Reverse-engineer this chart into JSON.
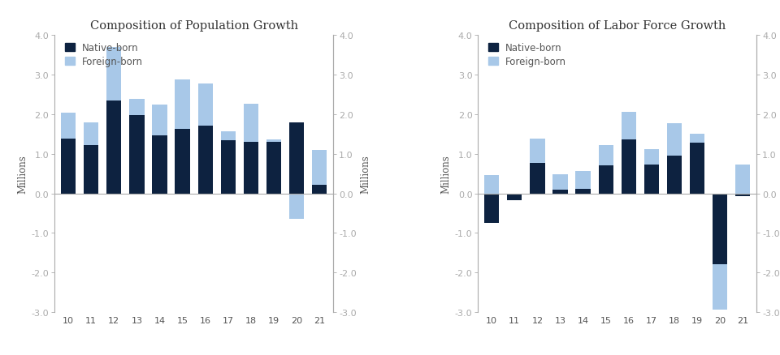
{
  "years": [
    10,
    11,
    12,
    13,
    14,
    15,
    16,
    17,
    18,
    19,
    20,
    21
  ],
  "pop_native": [
    1.38,
    1.22,
    2.35,
    1.97,
    1.47,
    1.62,
    1.7,
    1.35,
    1.3,
    1.3,
    1.8,
    0.22
  ],
  "pop_foreign": [
    0.65,
    0.57,
    1.35,
    0.42,
    0.78,
    1.25,
    1.07,
    0.22,
    0.97,
    0.07,
    -0.65,
    0.88
  ],
  "lf_native": [
    -0.75,
    -0.17,
    0.77,
    0.1,
    0.12,
    0.7,
    1.37,
    0.72,
    0.95,
    1.28,
    -1.78,
    -0.07
  ],
  "lf_foreign": [
    0.47,
    0.0,
    0.62,
    0.38,
    0.45,
    0.52,
    0.68,
    0.4,
    0.82,
    0.22,
    -1.15,
    0.72
  ],
  "color_native": "#0d2240",
  "color_foreign": "#a8c8e8",
  "title_pop": "Composition of Population Growth",
  "title_lf": "Composition of Labor Force Growth",
  "ylabel": "Millions",
  "ylim": [
    -3.0,
    4.0
  ],
  "yticks": [
    -3.0,
    -2.0,
    -1.0,
    0.0,
    1.0,
    2.0,
    3.0,
    4.0
  ],
  "yticklabels": [
    "-3.0",
    "-2.0",
    "-1.0",
    "0.0",
    "1.0",
    "2.0",
    "3.0",
    "4.0"
  ],
  "legend_native": "Native-born",
  "legend_foreign": "Foreign-born",
  "bar_width": 0.65,
  "bg_color": "#ffffff",
  "spine_color": "#aaaaaa",
  "tick_color": "#555555",
  "title_fontsize": 10.5,
  "label_fontsize": 8.5,
  "tick_fontsize": 8.0
}
